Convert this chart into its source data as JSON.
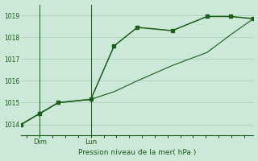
{
  "background_color": "#cce8d8",
  "grid_color": "#b0d4c0",
  "line_color": "#1a5c1a",
  "marker_color": "#1a5c1a",
  "title": "Pression niveau de la mer( hPa )",
  "ylim": [
    1013.5,
    1019.5
  ],
  "yticks": [
    1014,
    1015,
    1016,
    1017,
    1018,
    1019
  ],
  "xlim": [
    0,
    10
  ],
  "line1_x": [
    0,
    0.8,
    1.6,
    3.0,
    4.0,
    5.0,
    6.5,
    8.0,
    9.0,
    10.0
  ],
  "line1_y": [
    1014.0,
    1014.5,
    1015.0,
    1015.15,
    1017.6,
    1018.45,
    1018.3,
    1018.95,
    1018.95,
    1018.85
  ],
  "line2_x": [
    0,
    0.8,
    1.6,
    3.0,
    4.0,
    5.0,
    6.5,
    8.0,
    9.0,
    10.0
  ],
  "line2_y": [
    1014.0,
    1014.5,
    1015.0,
    1015.15,
    1015.5,
    1016.0,
    1016.7,
    1017.3,
    1018.1,
    1018.85
  ],
  "dim_tick_x": 0.8,
  "lun_tick_x": 3.0,
  "xtick_positions": [
    0.8,
    3.0
  ],
  "xtick_labels": [
    "Dim",
    "Lun"
  ],
  "figwidth": 3.2,
  "figheight": 2.0,
  "dpi": 100
}
